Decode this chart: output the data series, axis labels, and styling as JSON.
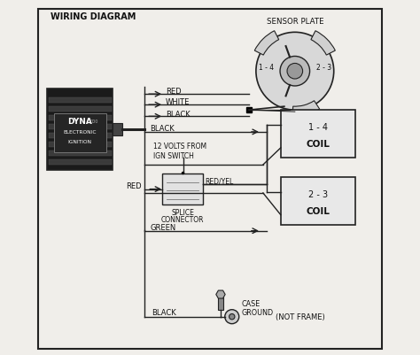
{
  "title": "WIRING DIAGRAM",
  "bg_color": "#f0eeea",
  "border_color": "#222222",
  "line_color": "#222222",
  "text_color": "#111111",
  "sensor_plate_label": "SENSOR PLATE",
  "sensor_plate_sublabels": [
    "1 - 4",
    "2 - 3"
  ],
  "dyna_box_label": [
    "DYNA",
    "ELECTRONIC",
    "IGNITION"
  ],
  "coil1_label": [
    "1 - 4",
    "COIL"
  ],
  "coil2_label": [
    "2 - 3",
    "COIL"
  ],
  "splice_label": [
    "SPLICE",
    "CONNECTOR"
  ],
  "wire_labels": {
    "red1": "RED",
    "white": "WHITE",
    "black1": "BLACK",
    "black2": "BLACK",
    "red2": "RED",
    "red_yel": "RED/YEL",
    "green": "GREEN",
    "black3": "BLACK",
    "volts": "12 VOLTS FROM\nIGN SWITCH",
    "case_ground": "CASE\nGROUND",
    "not_frame": "(NOT FRAME)"
  }
}
